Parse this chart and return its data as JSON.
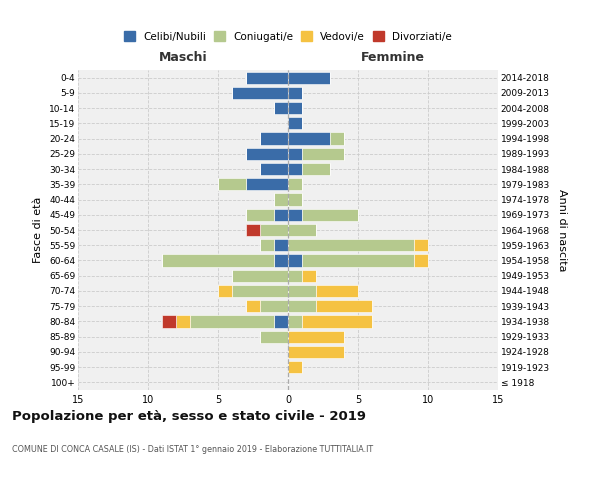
{
  "age_groups": [
    "100+",
    "95-99",
    "90-94",
    "85-89",
    "80-84",
    "75-79",
    "70-74",
    "65-69",
    "60-64",
    "55-59",
    "50-54",
    "45-49",
    "40-44",
    "35-39",
    "30-34",
    "25-29",
    "20-24",
    "15-19",
    "10-14",
    "5-9",
    "0-4"
  ],
  "birth_years": [
    "≤ 1918",
    "1919-1923",
    "1924-1928",
    "1929-1933",
    "1934-1938",
    "1939-1943",
    "1944-1948",
    "1949-1953",
    "1954-1958",
    "1959-1963",
    "1964-1968",
    "1969-1973",
    "1974-1978",
    "1979-1983",
    "1984-1988",
    "1989-1993",
    "1994-1998",
    "1999-2003",
    "2004-2008",
    "2009-2013",
    "2014-2018"
  ],
  "male": {
    "celibi": [
      0,
      0,
      0,
      0,
      1,
      0,
      0,
      0,
      1,
      1,
      0,
      1,
      0,
      3,
      2,
      3,
      2,
      0,
      1,
      4,
      3
    ],
    "coniugati": [
      0,
      0,
      0,
      2,
      6,
      2,
      4,
      4,
      8,
      1,
      2,
      2,
      1,
      2,
      0,
      0,
      0,
      0,
      0,
      0,
      0
    ],
    "vedovi": [
      0,
      0,
      0,
      0,
      1,
      1,
      1,
      0,
      0,
      0,
      0,
      0,
      0,
      0,
      0,
      0,
      0,
      0,
      0,
      0,
      0
    ],
    "divorziati": [
      0,
      0,
      0,
      0,
      1,
      0,
      0,
      0,
      0,
      0,
      1,
      0,
      0,
      0,
      0,
      0,
      0,
      0,
      0,
      0,
      0
    ]
  },
  "female": {
    "nubili": [
      0,
      0,
      0,
      0,
      0,
      0,
      0,
      0,
      1,
      0,
      0,
      1,
      0,
      0,
      1,
      1,
      3,
      1,
      1,
      1,
      3
    ],
    "coniugate": [
      0,
      0,
      0,
      0,
      1,
      2,
      2,
      1,
      8,
      9,
      2,
      4,
      1,
      1,
      2,
      3,
      1,
      0,
      0,
      0,
      0
    ],
    "vedove": [
      0,
      1,
      4,
      4,
      5,
      4,
      3,
      1,
      1,
      1,
      0,
      0,
      0,
      0,
      0,
      0,
      0,
      0,
      0,
      0,
      0
    ],
    "divorziate": [
      0,
      0,
      0,
      0,
      0,
      0,
      0,
      0,
      0,
      0,
      0,
      0,
      0,
      0,
      0,
      0,
      0,
      0,
      0,
      0,
      0
    ]
  },
  "colors": {
    "celibi_nubili": "#3a6ca8",
    "coniugati": "#b5c98e",
    "vedovi": "#f5c242",
    "divorziati": "#c0392b"
  },
  "xlim": 15,
  "title": "Popolazione per età, sesso e stato civile - 2019",
  "subtitle": "COMUNE DI CONCA CASALE (IS) - Dati ISTAT 1° gennaio 2019 - Elaborazione TUTTITALIA.IT",
  "ylabel_left": "Fasce di età",
  "ylabel_right": "Anni di nascita",
  "xlabel_maschi": "Maschi",
  "xlabel_femmine": "Femmine",
  "bg_color": "#f0f0f0",
  "grid_color": "#cccccc",
  "legend_labels": [
    "Celibi/Nubili",
    "Coniugati/e",
    "Vedovi/e",
    "Divorziati/e"
  ]
}
